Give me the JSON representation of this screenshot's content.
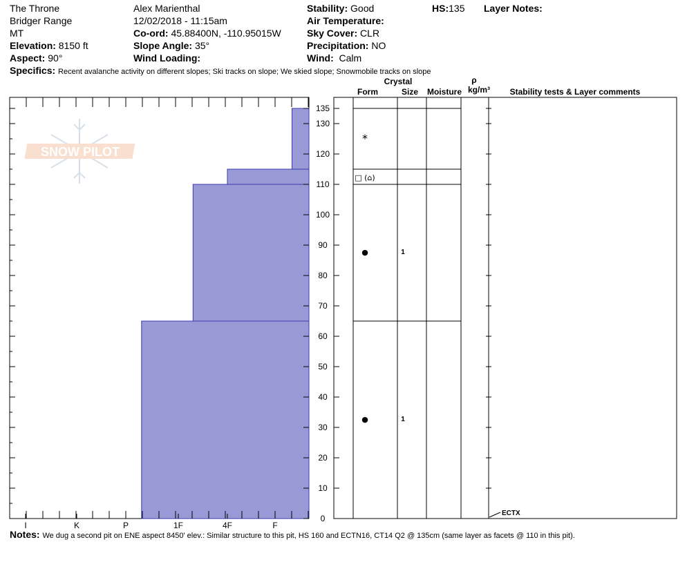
{
  "header": {
    "location": "The Throne",
    "range": "Bridger Range",
    "state": "MT",
    "elevation_label": "Elevation:",
    "elevation": "8150 ft",
    "aspect_label": "Aspect:",
    "aspect": "90°",
    "observer": "Alex Marienthal",
    "datetime": "12/02/2018 - 11:15am",
    "coord_label": "Co-ord:",
    "coord": "45.88400N, -110.95015W",
    "slope_label": "Slope Angle:",
    "slope": "35°",
    "wind_loading_label": "Wind Loading:",
    "wind_loading": "",
    "stability_label": "Stability:",
    "stability": "Good",
    "air_temp_label": "Air Temperature:",
    "air_temp": "",
    "sky_label": "Sky Cover:",
    "sky": "CLR",
    "precip_label": "Precipitation:",
    "precip": "NO",
    "wind_label": "Wind:",
    "wind": "Calm",
    "hs_label": "HS:",
    "hs": "135",
    "layer_notes_label": "Layer Notes:"
  },
  "specifics_label": "Specifics:",
  "specifics": "Recent avalanche activity on different slopes;  Ski tracks on slope;  We skied slope;  Snowmobile tracks on slope",
  "notes_label": "Notes:",
  "notes": "We dug a second pit on ENE aspect 8450' elev.: Similar structure to this pit, HS 160 and ECTN16, CT14 Q2 @ 135cm (same layer as facets @ 110 in this pit).",
  "logo_text": "SNOW PILOT",
  "columns": {
    "crystal": "Crystal",
    "form": "Form",
    "size": "Size",
    "moisture": "Moisture",
    "rho": "ρ",
    "density_unit": "kg/m³",
    "stability_tests": "Stability tests & Layer comments"
  },
  "colors": {
    "hardness_fill": "#9999d6",
    "hardness_stroke": "#3a3ab0"
  },
  "chart_data": {
    "type": "bar",
    "title": "",
    "xlabel": "",
    "ylabel": "",
    "hardness_scale": [
      "I",
      "K",
      "P",
      "1F",
      "4F",
      "F"
    ],
    "ylim": [
      0,
      135
    ],
    "yticks": [
      0,
      10,
      20,
      30,
      40,
      50,
      60,
      70,
      80,
      90,
      100,
      110,
      120,
      130,
      135
    ],
    "layers": [
      {
        "top": 65,
        "bottom": 0,
        "hardness_index": 2.3,
        "form": "●",
        "size": "1",
        "form_at": 33
      },
      {
        "top": 110,
        "bottom": 65,
        "hardness_index": 3.3,
        "form": "●",
        "size": "1",
        "form_at": 88
      },
      {
        "top": 115,
        "bottom": 110,
        "hardness_index": 4.0,
        "form": "□ (⌂)",
        "size": "",
        "form_at": 112.5
      },
      {
        "top": 135,
        "bottom": 115,
        "hardness_index": 5.35,
        "form": "*",
        "size": "",
        "form_at": 125
      }
    ],
    "tests": [
      {
        "depth": 0,
        "label": "ECTX"
      }
    ]
  }
}
